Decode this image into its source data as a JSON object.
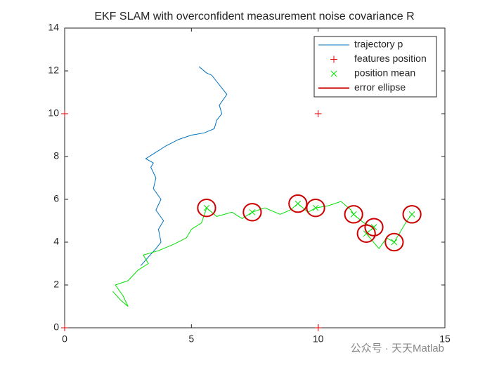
{
  "chart_data": {
    "type": "line",
    "title": "EKF SLAM with overconfident measurement noise covariance R",
    "xlim": [
      0,
      15
    ],
    "ylim": [
      0,
      14
    ],
    "xticks": [
      0,
      5,
      10,
      15
    ],
    "yticks": [
      0,
      2,
      4,
      6,
      8,
      10,
      12,
      14
    ],
    "legend": "northeast",
    "watermark": "公众号 · 天天Matlab",
    "series": [
      {
        "name": "trajectory p",
        "color": "#0072bd",
        "style": "line",
        "x": [
          3.0,
          3.3,
          3.6,
          3.8,
          3.7,
          3.9,
          3.6,
          3.8,
          3.5,
          3.6,
          3.4,
          3.5,
          3.2,
          3.6,
          4.0,
          4.5,
          5.0,
          5.5,
          5.9,
          6.0,
          6.2,
          6.1,
          6.4,
          6.2,
          6.0,
          5.8,
          5.6,
          5.3
        ],
        "y": [
          2.9,
          3.3,
          3.7,
          4.0,
          4.6,
          5.0,
          5.5,
          6.0,
          6.5,
          7.0,
          7.5,
          7.7,
          7.9,
          8.2,
          8.5,
          8.8,
          9.0,
          9.1,
          9.3,
          9.7,
          10.0,
          10.4,
          10.9,
          11.2,
          11.5,
          11.8,
          11.9,
          12.2
        ]
      },
      {
        "color": "#00e000",
        "style": "line",
        "x": [
          1.9,
          2.2,
          2.5,
          2.3,
          2.0,
          2.5,
          2.9,
          3.3,
          3.1,
          3.7,
          4.3,
          4.8,
          5.0,
          5.4,
          5.6,
          6.0,
          6.6,
          7.0,
          7.4,
          7.9,
          8.5,
          8.9,
          9.2,
          9.6,
          9.9,
          10.4,
          10.9,
          11.3,
          11.4,
          11.8,
          12.2,
          11.9,
          12.4,
          12.7,
          13.0,
          13.3,
          13.5,
          13.7
        ],
        "y": [
          1.7,
          1.3,
          1.0,
          1.5,
          2.0,
          2.2,
          2.7,
          3.0,
          3.4,
          3.6,
          3.9,
          4.2,
          4.6,
          4.9,
          5.6,
          5.2,
          5.4,
          5.1,
          5.4,
          5.6,
          5.3,
          5.5,
          5.8,
          5.4,
          5.6,
          5.7,
          5.9,
          5.5,
          5.3,
          4.9,
          4.7,
          4.4,
          3.7,
          4.2,
          4.0,
          4.6,
          5.0,
          5.3
        ]
      },
      {
        "name": "features position",
        "color": "#e00000",
        "style": "plus",
        "x": [
          0,
          10,
          0,
          10
        ],
        "y": [
          0,
          0,
          10,
          10
        ]
      },
      {
        "name": "position mean",
        "color": "#00e000",
        "style": "cross",
        "x": [
          5.6,
          7.4,
          9.2,
          9.9,
          11.4,
          12.2,
          11.9,
          13.0,
          13.7
        ],
        "y": [
          5.6,
          5.4,
          5.8,
          5.6,
          5.3,
          4.7,
          4.4,
          4.0,
          5.3
        ]
      },
      {
        "name": "error ellipse",
        "color": "#cc0000",
        "style": "ellipse",
        "x": [
          5.6,
          7.4,
          9.2,
          9.9,
          11.4,
          12.2,
          11.9,
          13.0,
          13.7
        ],
        "y": [
          5.6,
          5.4,
          5.8,
          5.6,
          5.3,
          4.7,
          4.4,
          4.0,
          5.3
        ],
        "rx": [
          0.35,
          0.35,
          0.35,
          0.35,
          0.35,
          0.35,
          0.35,
          0.35,
          0.35
        ],
        "ry": [
          0.4,
          0.4,
          0.4,
          0.4,
          0.4,
          0.4,
          0.4,
          0.4,
          0.4
        ]
      }
    ]
  }
}
